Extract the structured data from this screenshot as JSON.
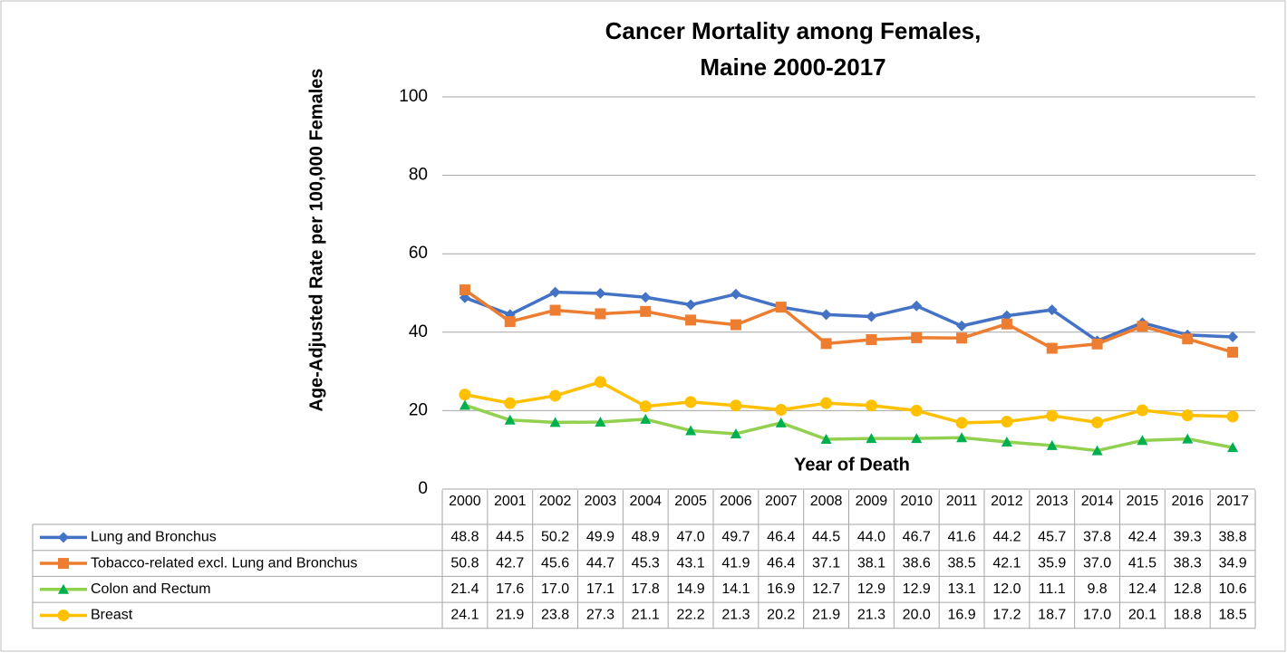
{
  "chart_data": {
    "type": "line",
    "title": [
      "Cancer Mortality among Females,",
      "Maine 2000-2017"
    ],
    "y_label": "Age-Adjusted Rate per 100,000 Females",
    "x_label": "Year of Death",
    "categories": [
      "2000",
      "2001",
      "2002",
      "2003",
      "2004",
      "2005",
      "2006",
      "2007",
      "2008",
      "2009",
      "2010",
      "2011",
      "2012",
      "2013",
      "2014",
      "2015",
      "2016",
      "2017"
    ],
    "ylim": [
      0,
      100
    ],
    "yticks": [
      0,
      20,
      40,
      60,
      80,
      100
    ],
    "grid": true,
    "series": [
      {
        "name": "Lung and Bronchus",
        "color": "#4472c4",
        "marker": "diamond",
        "values": [
          48.8,
          44.5,
          50.2,
          49.9,
          48.9,
          47.0,
          49.7,
          46.4,
          44.5,
          44.0,
          46.7,
          41.6,
          44.2,
          45.7,
          37.8,
          42.4,
          39.3,
          38.8
        ],
        "value_labels": [
          "48.8",
          "44.5",
          "50.2",
          "49.9",
          "48.9",
          "47.0",
          "49.7",
          "46.4",
          "44.5",
          "44.0",
          "46.7",
          "41.6",
          "44.2",
          "45.7",
          "37.8",
          "42.4",
          "39.3",
          "38.8"
        ]
      },
      {
        "name": "Tobacco-related excl. Lung and Bronchus",
        "color": "#ed7d31",
        "marker": "square",
        "values": [
          50.8,
          42.7,
          45.6,
          44.7,
          45.3,
          43.1,
          41.9,
          46.4,
          37.1,
          38.1,
          38.6,
          38.5,
          42.1,
          35.9,
          37.0,
          41.5,
          38.3,
          34.9
        ],
        "value_labels": [
          "50.8",
          "42.7",
          "45.6",
          "44.7",
          "45.3",
          "43.1",
          "41.9",
          "46.4",
          "37.1",
          "38.1",
          "38.6",
          "38.5",
          "42.1",
          "35.9",
          "37.0",
          "41.5",
          "38.3",
          "34.9"
        ]
      },
      {
        "name": "Colon and Rectum",
        "color": "#92d050",
        "marker_color": "#00b050",
        "marker": "triangle",
        "values": [
          21.4,
          17.6,
          17.0,
          17.1,
          17.8,
          14.9,
          14.1,
          16.9,
          12.7,
          12.9,
          12.9,
          13.1,
          12.0,
          11.1,
          9.8,
          12.4,
          12.8,
          10.6
        ],
        "value_labels": [
          "21.4",
          "17.6",
          "17.0",
          "17.1",
          "17.8",
          "14.9",
          "14.1",
          "16.9",
          "12.7",
          "12.9",
          "12.9",
          "13.1",
          "12.0",
          "11.1",
          "9.8",
          "12.4",
          "12.8",
          "10.6"
        ]
      },
      {
        "name": "Breast",
        "color": "#ffc000",
        "marker": "circle",
        "values": [
          24.1,
          21.9,
          23.8,
          27.3,
          21.1,
          22.2,
          21.3,
          20.2,
          21.9,
          21.3,
          20.0,
          16.9,
          17.2,
          18.7,
          17.0,
          20.1,
          18.8,
          18.5
        ],
        "value_labels": [
          "24.1",
          "21.9",
          "23.8",
          "27.3",
          "21.1",
          "22.2",
          "21.3",
          "20.2",
          "21.9",
          "21.3",
          "20.0",
          "16.9",
          "17.2",
          "18.7",
          "17.0",
          "20.1",
          "18.8",
          "18.5"
        ]
      }
    ]
  }
}
